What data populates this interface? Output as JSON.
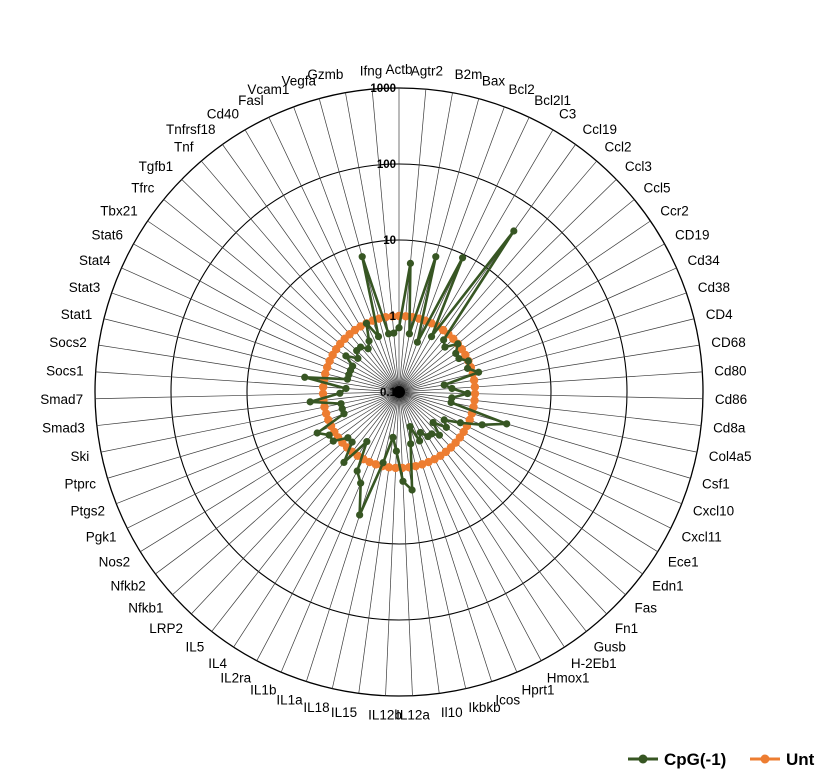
{
  "chart_data": {
    "type": "radar",
    "scale": "log10",
    "rlim": [
      0.1,
      1000
    ],
    "ticks": [
      "0.1",
      "1",
      "10",
      "100",
      "1000"
    ],
    "grid": true,
    "legend_position": "bottom-right",
    "categories": [
      "Actb",
      "Agtr2",
      "B2m",
      "Bax",
      "Bcl2",
      "Bcl2l1",
      "C3",
      "Ccl19",
      "Ccl2",
      "Ccl3",
      "Ccl5",
      "Ccr2",
      "CD19",
      "Cd34",
      "Cd38",
      "CD4",
      "CD68",
      "Cd80",
      "Cd86",
      "Cd8a",
      "Col4a5",
      "Csf1",
      "Cxcl10",
      "Cxcl11",
      "Ece1",
      "Edn1",
      "Fas",
      "Fn1",
      "Gusb",
      "H-2Eb1",
      "Hmox1",
      "Hprt1",
      "Icos",
      "Ikbkb",
      "Il10",
      "IL12a",
      "IL12b",
      "IL15",
      "IL18",
      "IL1a",
      "IL1b",
      "IL2ra",
      "IL4",
      "IL5",
      "LRP2",
      "Nfkb1",
      "Nfkb2",
      "Nos2",
      "Pgk1",
      "Ptgs2",
      "Ptprc",
      "Ski",
      "Smad3",
      "Smad7",
      "Socs1",
      "Socs2",
      "Stat1",
      "Stat3",
      "Stat4",
      "Stat6",
      "Tbx21",
      "Tfrc",
      "Tgfb1",
      "Tnf",
      "Tnfrsf18",
      "Cd40",
      "Fasl",
      "Vcam1",
      "Vegfa",
      "Gzmb",
      "Ifng"
    ],
    "series": [
      {
        "name": "CpG(-1)",
        "color": "#375623",
        "values": [
          0.7,
          5,
          0.6,
          7,
          0.5,
          9,
          0.7,
          40,
          0.8,
          0.7,
          1.0,
          0.8,
          0.8,
          1.0,
          0.9,
          1.2,
          0.4,
          0.5,
          0.8,
          0.5,
          0.5,
          3,
          1.5,
          0.8,
          0.5,
          0.6,
          0.4,
          0.6,
          0.5,
          0.5,
          0.4,
          0.5,
          0.3,
          0.5,
          2,
          1.5,
          0.6,
          0.4,
          0.9,
          5,
          2,
          1.5,
          0.6,
          1.5,
          0.8,
          0.8,
          1.2,
          1.2,
          1.6,
          0.6,
          0.6,
          0.6,
          1.5,
          0.6,
          0.5,
          1.8,
          0.5,
          0.5,
          0.5,
          0.5,
          0.7,
          0.5,
          0.6,
          0.6,
          0.5,
          0.6,
          1.0,
          0.6,
          7,
          0.6,
          0.6
        ]
      },
      {
        "name": "Unt",
        "color": "#ED7D31",
        "values": [
          1,
          1,
          1,
          1,
          1,
          1,
          1,
          1,
          1,
          1,
          1,
          1,
          1,
          1,
          1,
          1,
          1,
          1,
          1,
          1,
          1,
          1,
          1,
          1,
          1,
          1,
          1,
          1,
          1,
          1,
          1,
          1,
          1,
          1,
          1,
          1,
          1,
          1,
          1,
          1,
          1,
          1,
          1,
          1,
          1,
          1,
          1,
          1,
          1,
          1,
          1,
          1,
          1,
          1,
          1,
          1,
          1,
          1,
          1,
          1,
          1,
          1,
          1,
          1,
          1,
          1,
          1,
          1,
          1,
          1,
          1
        ]
      }
    ]
  }
}
